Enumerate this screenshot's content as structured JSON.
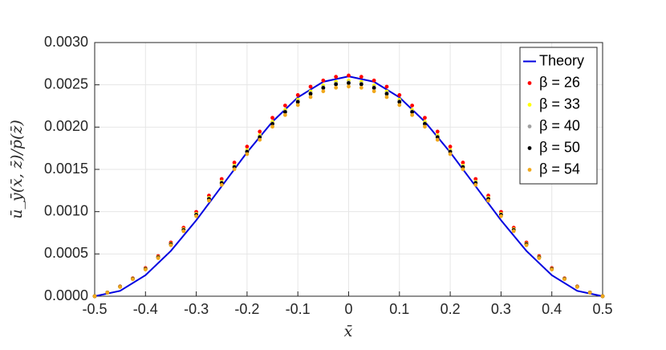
{
  "chart_data": {
    "type": "scatter",
    "x_label": "x̄",
    "y_label": "ū_ȳ(x̄, z̄)/p̄(z̄)",
    "x": [
      -0.5,
      -0.475,
      -0.45,
      -0.425,
      -0.4,
      -0.375,
      -0.35,
      -0.325,
      -0.3,
      -0.275,
      -0.25,
      -0.225,
      -0.2,
      -0.175,
      -0.15,
      -0.125,
      -0.1,
      -0.075,
      -0.05,
      -0.025,
      0,
      0.025,
      0.05,
      0.075,
      0.1,
      0.125,
      0.15,
      0.175,
      0.2,
      0.225,
      0.25,
      0.275,
      0.3,
      0.325,
      0.35,
      0.375,
      0.4,
      0.425,
      0.45,
      0.475,
      0.5
    ],
    "series": [
      {
        "name": "Theory",
        "type": "line",
        "color": "#0000e0",
        "x": [
          -0.5,
          -0.45,
          -0.4,
          -0.35,
          -0.3,
          -0.25,
          -0.2,
          -0.15,
          -0.1,
          -0.05,
          0,
          0.05,
          0.1,
          0.15,
          0.2,
          0.25,
          0.3,
          0.35,
          0.4,
          0.45,
          0.5
        ],
        "values": [
          0,
          6.36e-05,
          0.000248,
          0.000536,
          0.000898,
          0.0013,
          0.001702,
          0.002064,
          0.002352,
          0.002536,
          0.0026,
          0.002536,
          0.002352,
          0.002064,
          0.001702,
          0.0013,
          0.000898,
          0.000536,
          0.000248,
          6.36e-05,
          0
        ]
      },
      {
        "name": "β = 26",
        "color": "#ff0000",
        "values": [
          0,
          4.4e-05,
          0.000116,
          0.000212,
          0.000333,
          0.000475,
          0.000635,
          0.00081,
          0.000997,
          0.00119,
          0.001386,
          0.00158,
          0.001769,
          0.001947,
          0.00211,
          0.002255,
          0.002379,
          0.002478,
          0.002551,
          0.002595,
          0.00261,
          0.002595,
          0.002551,
          0.002478,
          0.002379,
          0.002255,
          0.00211,
          0.001947,
          0.001769,
          0.00158,
          0.001386,
          0.00119,
          0.000997,
          0.00081,
          0.000635,
          0.000475,
          0.000333,
          0.000212,
          0.000116,
          4.4e-05,
          0
        ]
      },
      {
        "name": "β = 33",
        "color": "#ffff00",
        "values": [
          0,
          4.3e-05,
          0.000113,
          0.000207,
          0.000325,
          0.000464,
          0.00062,
          0.000792,
          0.000974,
          0.001163,
          0.001354,
          0.001544,
          0.001728,
          0.001902,
          0.002062,
          0.002203,
          0.002324,
          0.002421,
          0.002492,
          0.002535,
          0.00255,
          0.002535,
          0.002492,
          0.002421,
          0.002324,
          0.002203,
          0.002062,
          0.001902,
          0.001728,
          0.001544,
          0.001354,
          0.001163,
          0.000974,
          0.000792,
          0.00062,
          0.000464,
          0.000325,
          0.000207,
          0.000113,
          4.3e-05,
          0
        ]
      },
      {
        "name": "β = 40",
        "color": "#a0a0a0",
        "values": [
          0,
          4.3e-05,
          0.000112,
          0.000206,
          0.000323,
          0.00046,
          0.000616,
          0.000785,
          0.000966,
          0.001153,
          0.001344,
          0.001532,
          0.001714,
          0.001887,
          0.002045,
          0.002186,
          0.002306,
          0.002402,
          0.002473,
          0.002516,
          0.00253,
          0.002516,
          0.002473,
          0.002402,
          0.002306,
          0.002186,
          0.002045,
          0.001887,
          0.001714,
          0.001532,
          0.001344,
          0.001153,
          0.000966,
          0.000785,
          0.000616,
          0.00046,
          0.000323,
          0.000206,
          0.000112,
          4.3e-05,
          0
        ]
      },
      {
        "name": "β = 50",
        "color": "#000000",
        "values": [
          0,
          4.3e-05,
          0.000112,
          0.000205,
          0.000321,
          0.000458,
          0.000613,
          0.000782,
          0.000962,
          0.001149,
          0.001338,
          0.001526,
          0.001708,
          0.00188,
          0.002037,
          0.002178,
          0.002297,
          0.002393,
          0.002463,
          0.002506,
          0.00252,
          0.002506,
          0.002463,
          0.002393,
          0.002297,
          0.002178,
          0.002037,
          0.00188,
          0.001708,
          0.001526,
          0.001338,
          0.001149,
          0.000962,
          0.000782,
          0.000613,
          0.000458,
          0.000321,
          0.000205,
          0.000112,
          4.3e-05,
          0
        ]
      },
      {
        "name": "β = 54",
        "color": "#f0a81c",
        "values": [
          0,
          4.2e-05,
          0.00011,
          0.000202,
          0.000316,
          0.000451,
          0.000603,
          0.00077,
          0.000947,
          0.001131,
          0.001317,
          0.001502,
          0.001681,
          0.00185,
          0.002005,
          0.002143,
          0.002261,
          0.002355,
          0.002424,
          0.002466,
          0.00248,
          0.002466,
          0.002424,
          0.002355,
          0.002261,
          0.002143,
          0.002005,
          0.00185,
          0.001681,
          0.001502,
          0.001317,
          0.001131,
          0.000947,
          0.00077,
          0.000603,
          0.000451,
          0.000316,
          0.000202,
          0.00011,
          4.2e-05,
          0
        ]
      }
    ],
    "xlim": [
      -0.5,
      0.5
    ],
    "xticks": [
      -0.5,
      -0.4,
      -0.3,
      -0.2,
      -0.1,
      0,
      0.1,
      0.2,
      0.3,
      0.4,
      0.5
    ],
    "ylim": [
      0,
      0.003
    ],
    "yticks": [
      {
        "value": 0,
        "label": "0.0000"
      },
      {
        "value": 0.0005,
        "label": "0.0005"
      },
      {
        "value": 0.001,
        "label": "0.0010"
      },
      {
        "value": 0.0015,
        "label": "0.0015"
      },
      {
        "value": 0.002,
        "label": "0.0020"
      },
      {
        "value": 0.0025,
        "label": "0.0025"
      },
      {
        "value": 0.003,
        "label": "0.0030"
      }
    ],
    "grid": true,
    "legend": "upper right"
  }
}
